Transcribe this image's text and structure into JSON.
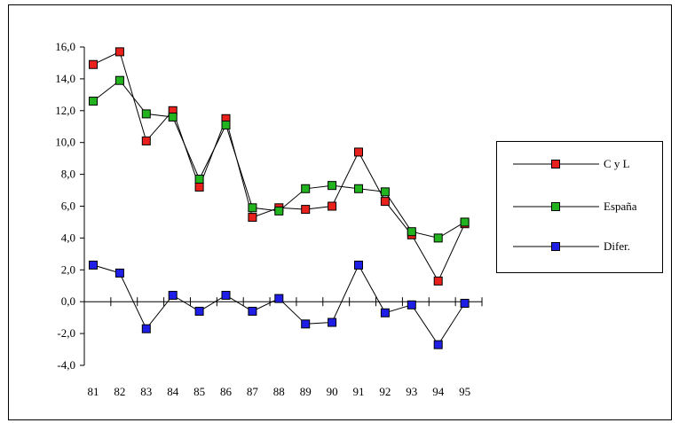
{
  "chart_data": {
    "type": "line",
    "categories": [
      "81",
      "82",
      "83",
      "84",
      "85",
      "86",
      "87",
      "88",
      "89",
      "90",
      "91",
      "92",
      "93",
      "94",
      "95"
    ],
    "series": [
      {
        "name": "C y L",
        "color": "#e8211c",
        "values": [
          14.9,
          15.7,
          10.1,
          12.0,
          7.2,
          11.5,
          5.3,
          5.9,
          5.8,
          6.0,
          9.4,
          6.3,
          4.2,
          1.3,
          4.9
        ]
      },
      {
        "name": "España",
        "color": "#22b41e",
        "values": [
          12.6,
          13.9,
          11.8,
          11.6,
          7.7,
          11.1,
          5.9,
          5.7,
          7.1,
          7.3,
          7.1,
          6.9,
          4.4,
          4.0,
          5.0
        ]
      },
      {
        "name": "Difer.",
        "color": "#1e1ee6",
        "values": [
          2.3,
          1.8,
          -1.7,
          0.4,
          -0.6,
          0.4,
          -0.6,
          0.2,
          -1.4,
          -1.3,
          2.3,
          -0.7,
          -0.2,
          -2.7,
          -0.1
        ]
      }
    ],
    "yticks": [
      "16,0",
      "14,0",
      "12,0",
      "10,0",
      "8,0",
      "6,0",
      "4,0",
      "2,0",
      "0,0",
      "-2,0",
      "-4,0"
    ],
    "ylim": [
      -4,
      16
    ],
    "grid": false,
    "legend": "right"
  }
}
